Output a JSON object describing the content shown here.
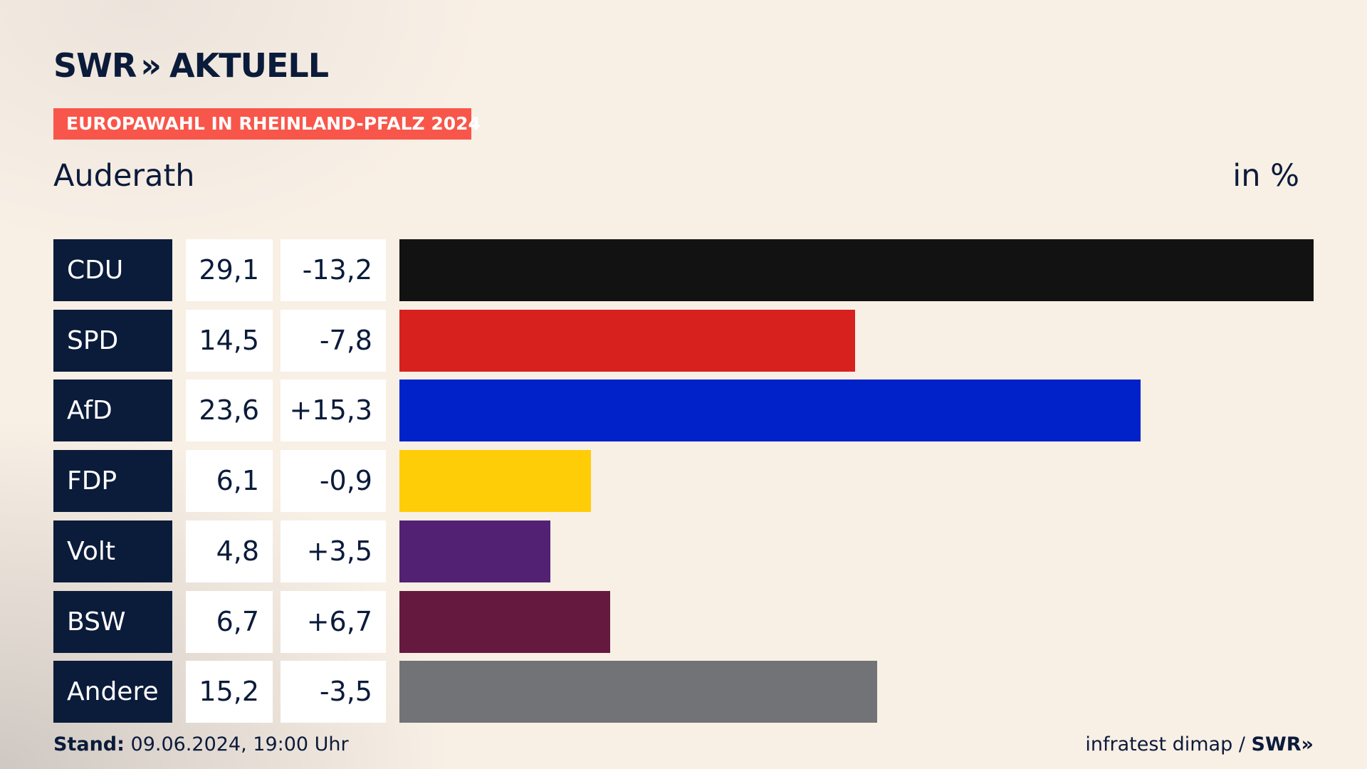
{
  "brand": {
    "name": "SWR",
    "chevrons": "»",
    "product": "AKTUELL",
    "footer_logo": "SWR»"
  },
  "header": {
    "badge": "EUROPAWAHL IN RHEINLAND-PFALZ 2024",
    "place": "Auderath",
    "unit": "in %"
  },
  "footer": {
    "stand_label": "Stand:",
    "stand_value": "09.06.2024, 19:00 Uhr",
    "source": "infratest dimap /"
  },
  "colors": {
    "badge": "#f8564a",
    "party_box": "#0b1b3a",
    "text": "#0b1b3a"
  },
  "chart_data": {
    "type": "bar",
    "orientation": "horizontal",
    "categories": [
      "CDU",
      "SPD",
      "AfD",
      "FDP",
      "Volt",
      "BSW",
      "Andere"
    ],
    "values": [
      29.1,
      14.5,
      23.6,
      6.1,
      4.8,
      6.7,
      15.2
    ],
    "value_labels": [
      "29,1",
      "14,5",
      "23,6",
      "6,1",
      "4,8",
      "6,7",
      "15,2"
    ],
    "changes": [
      -13.2,
      -7.8,
      15.3,
      -0.9,
      3.5,
      6.7,
      -3.5
    ],
    "change_labels": [
      "-13,2",
      "-7,8",
      "+15,3",
      "-0,9",
      "+3,5",
      "+6,7",
      "-3,5"
    ],
    "colors": [
      "#121212",
      "#d6211f",
      "#0022c8",
      "#fecd08",
      "#532174",
      "#66193e",
      "#727376"
    ],
    "xlim": [
      0,
      29.1
    ],
    "title": "Auderath",
    "unit": "in %",
    "grid": false,
    "legend": "none"
  }
}
